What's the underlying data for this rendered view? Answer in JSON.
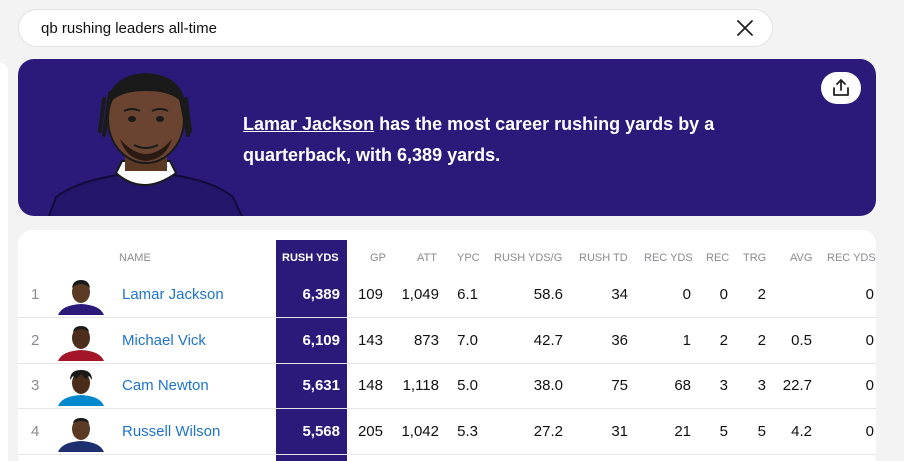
{
  "search": {
    "query": "qb rushing leaders all-time"
  },
  "hero": {
    "player_link": "Lamar Jackson",
    "sentence": " has the most career rushing yards by a quarterback, with 6,389 yards."
  },
  "table": {
    "headers": [
      "NAME",
      "RUSH YDS",
      "GP",
      "ATT",
      "YPC",
      "RUSH YDS/G",
      "RUSH TD",
      "REC YDS",
      "REC",
      "TRG",
      "AVG",
      "REC YDS"
    ],
    "rows": [
      {
        "rank": "1",
        "name": "Lamar Jackson",
        "rush_yds": "6,389",
        "gp": "109",
        "att": "1,049",
        "ypc": "6.1",
        "rush_yds_g": "58.6",
        "rush_td": "34",
        "rec_yds": "0",
        "rec": "0",
        "trg": "2",
        "avg": "",
        "rec_yds2": "0",
        "jersey_color": "#2b1a7a",
        "skin": "#5a3a24"
      },
      {
        "rank": "2",
        "name": "Michael Vick",
        "rush_yds": "6,109",
        "gp": "143",
        "att": "873",
        "ypc": "7.0",
        "rush_yds_g": "42.7",
        "rush_td": "36",
        "rec_yds": "1",
        "rec": "2",
        "trg": "2",
        "avg": "0.5",
        "rec_yds2": "0",
        "jersey_color": "#a3162a",
        "skin": "#4d2e1c"
      },
      {
        "rank": "3",
        "name": "Cam Newton",
        "rush_yds": "5,631",
        "gp": "148",
        "att": "1,118",
        "ypc": "5.0",
        "rush_yds_g": "38.0",
        "rush_td": "75",
        "rec_yds": "68",
        "rec": "3",
        "trg": "3",
        "avg": "22.7",
        "rec_yds2": "0",
        "jersey_color": "#0088cc",
        "skin": "#4a2c1a"
      },
      {
        "rank": "4",
        "name": "Russell Wilson",
        "rush_yds": "5,568",
        "gp": "205",
        "att": "1,042",
        "ypc": "5.3",
        "rush_yds_g": "27.2",
        "rush_td": "31",
        "rec_yds": "21",
        "rec": "5",
        "trg": "5",
        "avg": "4.2",
        "rec_yds2": "0",
        "jersey_color": "#1d2f6e",
        "skin": "#5a3a24"
      }
    ]
  },
  "colors": {
    "accent": "#2b1a7a",
    "link": "#1f74c9"
  },
  "icons": {
    "close": "close-icon",
    "share": "share-icon"
  }
}
